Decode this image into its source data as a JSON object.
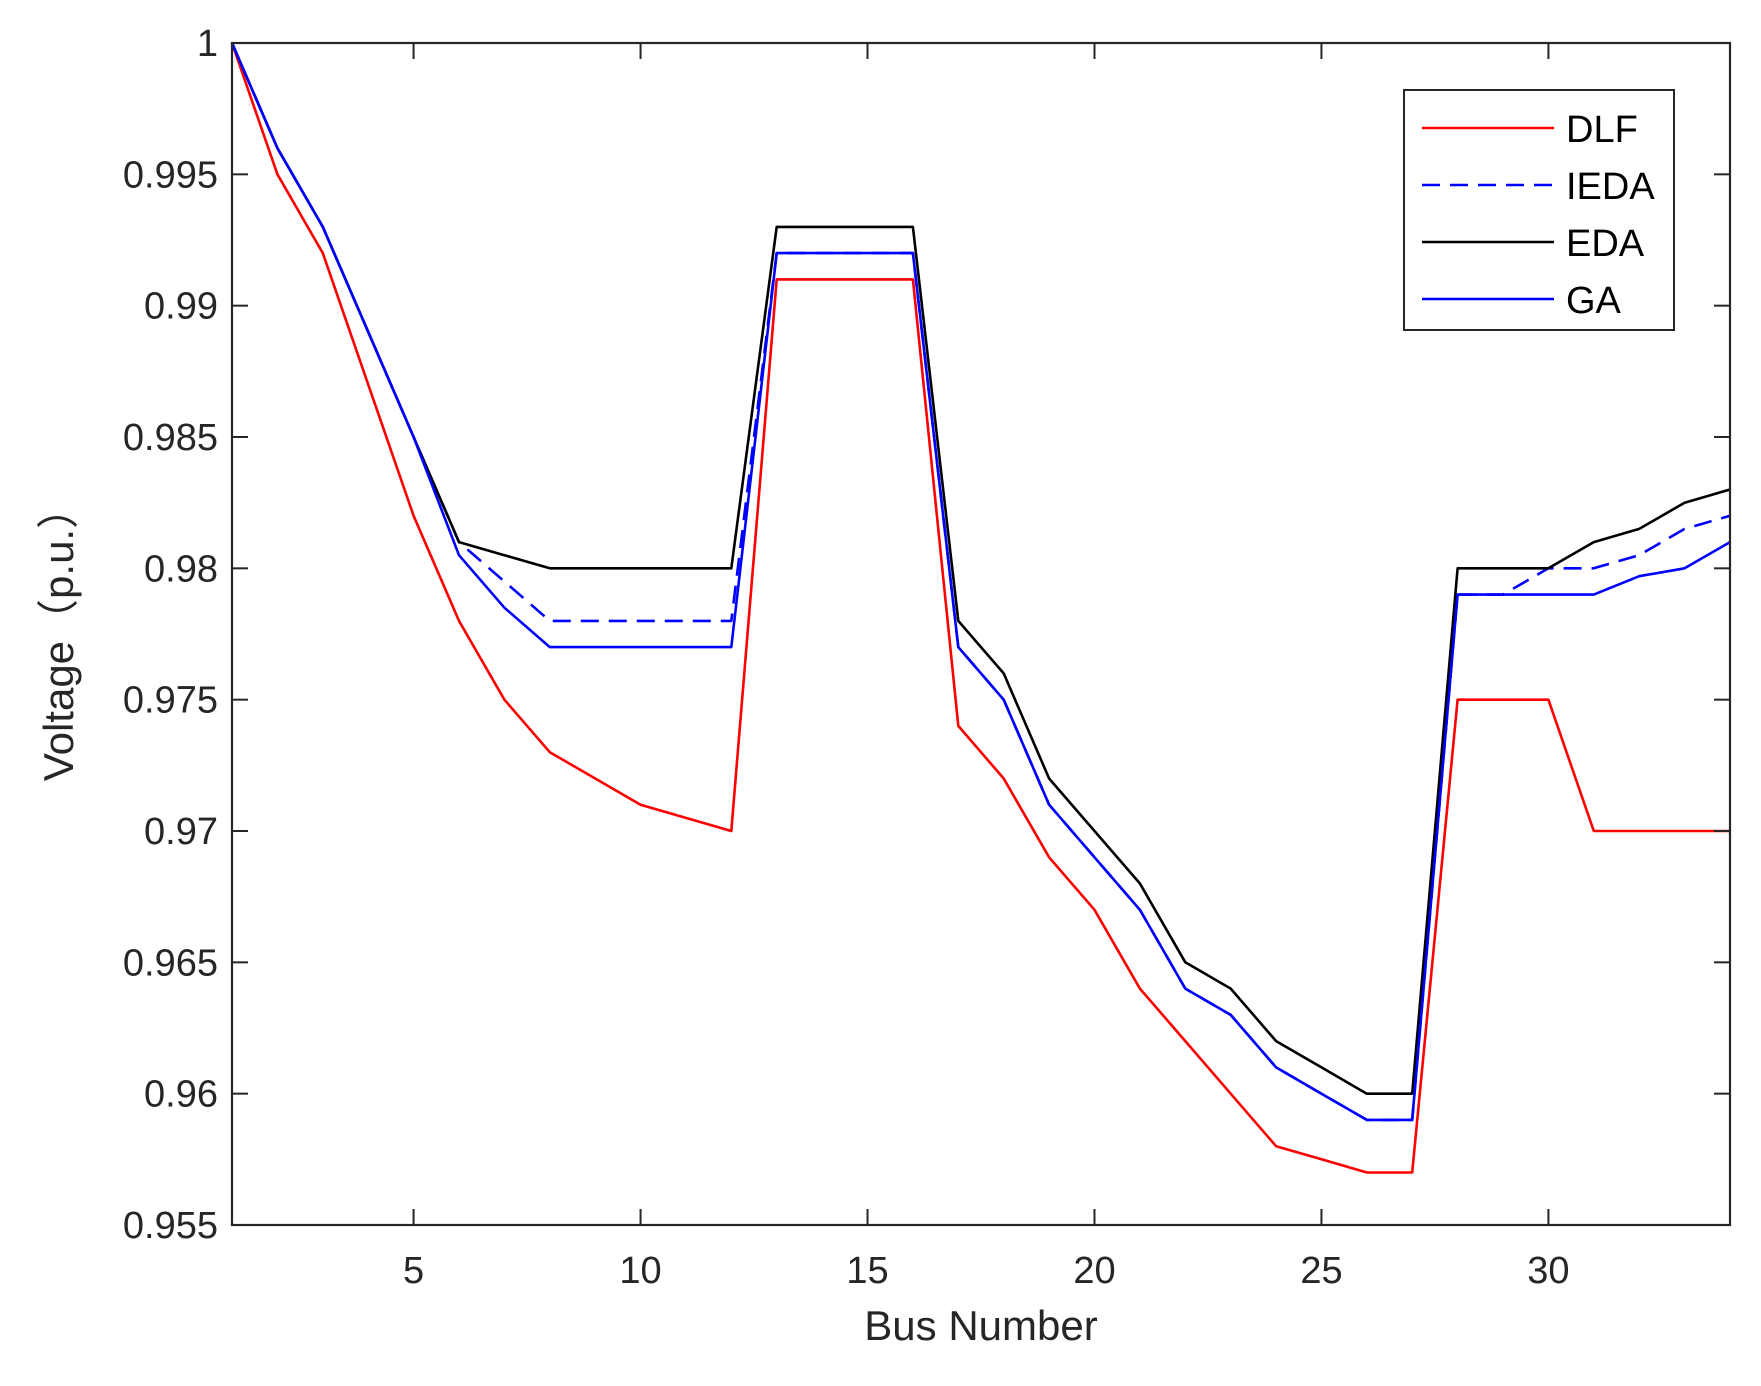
{
  "chart_data": {
    "type": "line",
    "title": "",
    "xlabel": "Bus Number",
    "ylabel": "Voltage（p.u.）",
    "xlim": [
      1,
      34
    ],
    "ylim": [
      0.955,
      1
    ],
    "xticks": [
      5,
      10,
      15,
      20,
      25,
      30
    ],
    "xtick_labels": [
      "5",
      "10",
      "15",
      "20",
      "25",
      "30"
    ],
    "yticks": [
      0.955,
      0.96,
      0.965,
      0.97,
      0.975,
      0.98,
      0.985,
      0.99,
      0.995,
      1
    ],
    "ytick_labels": [
      "0.955",
      "0.96",
      "0.965",
      "0.97",
      "0.975",
      "0.98",
      "0.985",
      "0.99",
      "0.995",
      "1"
    ],
    "grid": false,
    "legend_position": "top-right",
    "x": [
      1,
      2,
      3,
      4,
      5,
      6,
      7,
      8,
      9,
      10,
      11,
      12,
      13,
      14,
      15,
      16,
      17,
      18,
      19,
      20,
      21,
      22,
      23,
      24,
      25,
      26,
      27,
      28,
      29,
      30,
      31,
      32,
      33,
      34
    ],
    "series": [
      {
        "name": "DLF",
        "color": "#ff0000",
        "dash": "solid",
        "values": [
          1.0,
          0.995,
          0.992,
          0.987,
          0.982,
          0.978,
          0.975,
          0.973,
          0.972,
          0.971,
          0.9705,
          0.97,
          0.991,
          0.991,
          0.991,
          0.991,
          0.974,
          0.972,
          0.969,
          0.967,
          0.964,
          0.962,
          0.96,
          0.958,
          0.9575,
          0.957,
          0.957,
          0.975,
          0.975,
          0.975,
          0.97,
          0.97,
          0.97,
          0.97
        ]
      },
      {
        "name": "IEDA",
        "color": "#0000ff",
        "dash": "dashed",
        "values": [
          1.0,
          0.996,
          0.993,
          0.989,
          0.985,
          0.981,
          0.9795,
          0.978,
          0.978,
          0.978,
          0.978,
          0.978,
          0.992,
          0.992,
          0.992,
          0.992,
          0.977,
          0.975,
          0.971,
          0.969,
          0.967,
          0.964,
          0.963,
          0.961,
          0.96,
          0.959,
          0.959,
          0.979,
          0.979,
          0.98,
          0.98,
          0.9805,
          0.9815,
          0.982
        ]
      },
      {
        "name": "EDA",
        "color": "#000000",
        "dash": "solid",
        "values": [
          1.0,
          0.996,
          0.993,
          0.989,
          0.985,
          0.981,
          0.9805,
          0.98,
          0.98,
          0.98,
          0.98,
          0.98,
          0.993,
          0.993,
          0.993,
          0.993,
          0.978,
          0.976,
          0.972,
          0.97,
          0.968,
          0.965,
          0.964,
          0.962,
          0.961,
          0.96,
          0.96,
          0.98,
          0.98,
          0.98,
          0.981,
          0.9815,
          0.9825,
          0.983
        ]
      },
      {
        "name": "GA",
        "color": "#0000ff",
        "dash": "solid",
        "values": [
          1.0,
          0.996,
          0.993,
          0.989,
          0.985,
          0.9805,
          0.9785,
          0.977,
          0.977,
          0.977,
          0.977,
          0.977,
          0.992,
          0.992,
          0.992,
          0.992,
          0.977,
          0.975,
          0.971,
          0.969,
          0.967,
          0.964,
          0.963,
          0.961,
          0.96,
          0.959,
          0.959,
          0.979,
          0.979,
          0.979,
          0.979,
          0.9797,
          0.98,
          0.981
        ]
      }
    ]
  }
}
